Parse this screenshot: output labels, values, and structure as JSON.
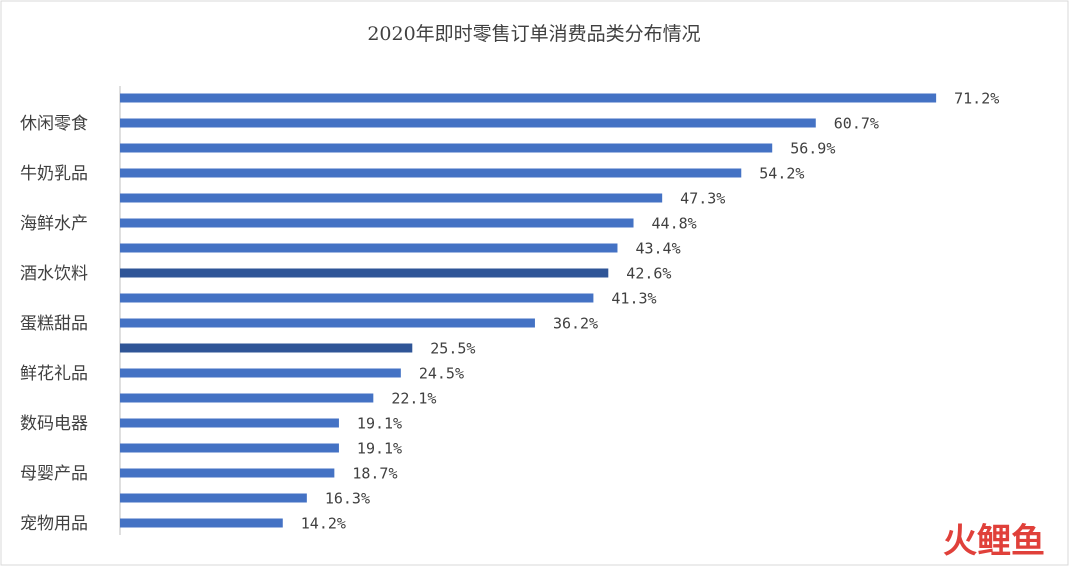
{
  "chart_data": {
    "type": "bar",
    "orientation": "horizontal",
    "title": "2020年即时零售订单消费品类分布情况",
    "categories": [
      null,
      "休闲零食",
      null,
      "牛奶乳品",
      null,
      "海鲜水产",
      null,
      "酒水饮料",
      null,
      "蛋糕甜品",
      null,
      "鲜花礼品",
      null,
      "数码电器",
      null,
      "母婴产品",
      null,
      "宠物用品"
    ],
    "values": [
      71.2,
      60.7,
      56.9,
      54.2,
      47.3,
      44.8,
      43.4,
      42.6,
      41.3,
      36.2,
      25.5,
      24.5,
      22.1,
      19.1,
      19.1,
      18.7,
      16.3,
      14.2
    ],
    "value_labels": [
      "71.2%",
      "60.7%",
      "56.9%",
      "54.2%",
      "47.3%",
      "44.8%",
      "43.4%",
      "42.6%",
      "41.3%",
      "36.2%",
      "25.5%",
      "24.5%",
      "22.1%",
      "19.1%",
      "19.1%",
      "18.7%",
      "16.3%",
      "14.2%"
    ],
    "colors": [
      "#4472c4",
      "#4472c4",
      "#4472c4",
      "#4472c4",
      "#4472c4",
      "#4472c4",
      "#4472c4",
      "#2f5597",
      "#4472c4",
      "#4472c4",
      "#2f5597",
      "#4472c4",
      "#4472c4",
      "#4472c4",
      "#4472c4",
      "#4472c4",
      "#4472c4",
      "#4472c4"
    ],
    "xlim": [
      0,
      80
    ],
    "watermark": "火鲤鱼"
  }
}
